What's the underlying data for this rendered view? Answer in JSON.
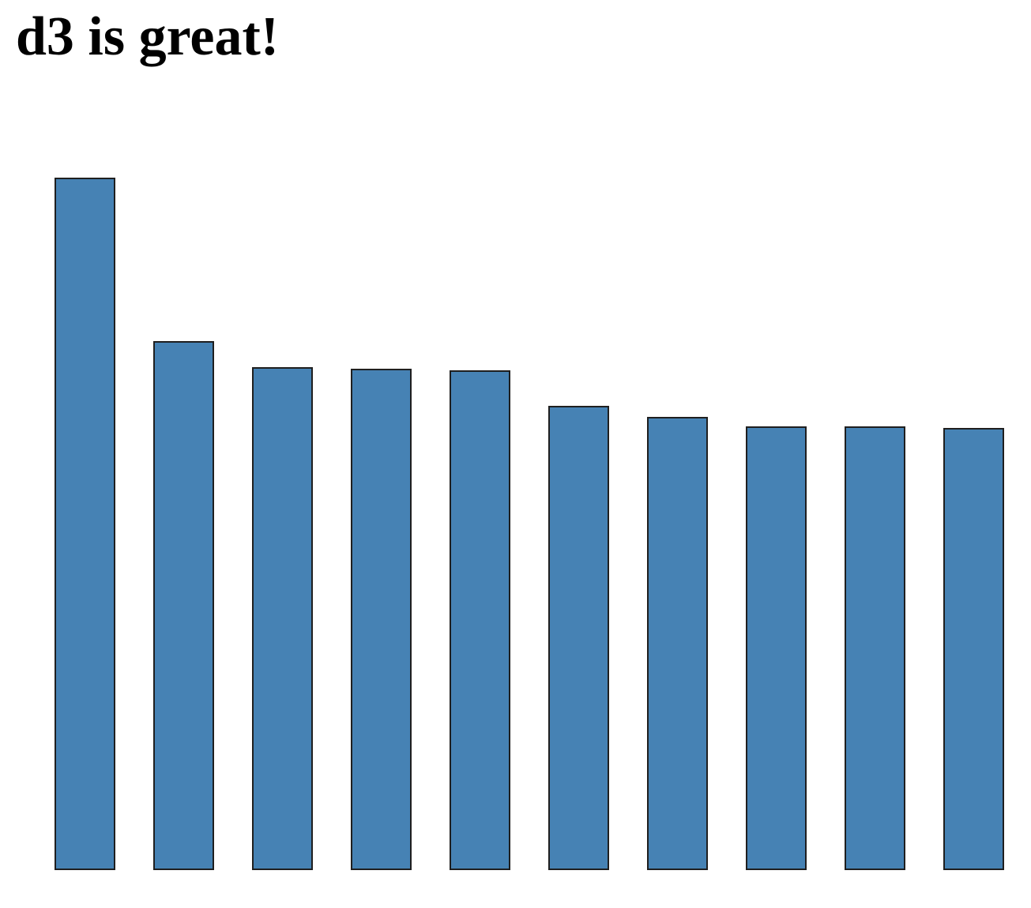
{
  "header": {
    "title": "d3 is great!"
  },
  "chart_data": {
    "type": "bar",
    "values": [
      875,
      668,
      635,
      633,
      631,
      586,
      572,
      560,
      560,
      558
    ],
    "ylim": [
      0,
      875
    ],
    "grid": false,
    "bar_color": "#4682b4",
    "stroke_color": "#1f1f1f"
  }
}
